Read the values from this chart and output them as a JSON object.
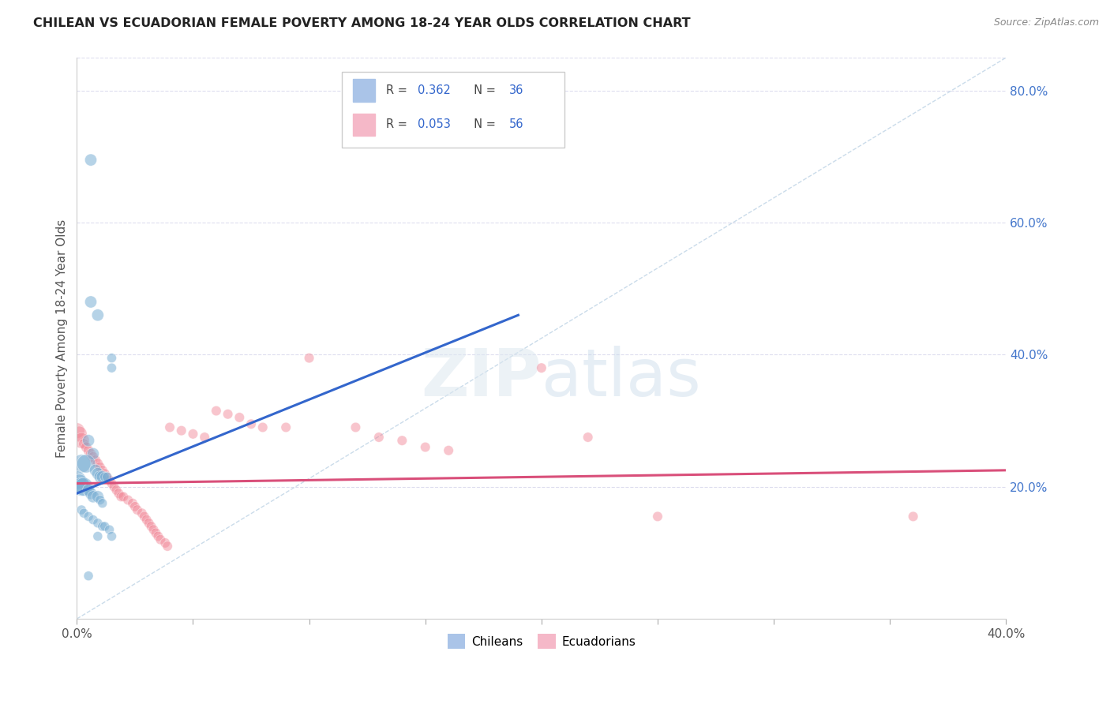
{
  "title": "CHILEAN VS ECUADORIAN FEMALE POVERTY AMONG 18-24 YEAR OLDS CORRELATION CHART",
  "source": "Source: ZipAtlas.com",
  "ylabel": "Female Poverty Among 18-24 Year Olds",
  "xlim": [
    0.0,
    0.4
  ],
  "ylim": [
    0.0,
    0.85
  ],
  "ytick_positions": [
    0.2,
    0.4,
    0.6,
    0.8
  ],
  "ytick_labels": [
    "20.0%",
    "40.0%",
    "60.0%",
    "80.0%"
  ],
  "xtick_positions": [
    0.0,
    0.05,
    0.1,
    0.15,
    0.2,
    0.25,
    0.3,
    0.35,
    0.4
  ],
  "xtick_labels": [
    "0.0%",
    "",
    "",
    "",
    "",
    "",
    "",
    "",
    "40.0%"
  ],
  "watermark": "ZIPatlas",
  "chilean_color": "#7bafd4",
  "ecuadorian_color": "#f08090",
  "trendline_chilean_color": "#3366cc",
  "trendline_ecuadorian_color": "#d94f7a",
  "diagonal_color": "#c5d8e8",
  "chilean_points": [
    [
      0.006,
      0.695
    ],
    [
      0.006,
      0.48
    ],
    [
      0.015,
      0.395
    ],
    [
      0.015,
      0.38
    ],
    [
      0.009,
      0.46
    ],
    [
      0.005,
      0.27
    ],
    [
      0.007,
      0.25
    ],
    [
      0.002,
      0.235
    ],
    [
      0.004,
      0.235
    ],
    [
      0.008,
      0.225
    ],
    [
      0.009,
      0.22
    ],
    [
      0.01,
      0.215
    ],
    [
      0.011,
      0.215
    ],
    [
      0.012,
      0.215
    ],
    [
      0.013,
      0.215
    ],
    [
      0.0,
      0.21
    ],
    [
      0.001,
      0.205
    ],
    [
      0.002,
      0.2
    ],
    [
      0.003,
      0.2
    ],
    [
      0.005,
      0.195
    ],
    [
      0.006,
      0.19
    ],
    [
      0.007,
      0.185
    ],
    [
      0.009,
      0.185
    ],
    [
      0.01,
      0.18
    ],
    [
      0.011,
      0.175
    ],
    [
      0.002,
      0.165
    ],
    [
      0.003,
      0.16
    ],
    [
      0.005,
      0.155
    ],
    [
      0.007,
      0.15
    ],
    [
      0.009,
      0.145
    ],
    [
      0.011,
      0.14
    ],
    [
      0.012,
      0.14
    ],
    [
      0.014,
      0.135
    ],
    [
      0.009,
      0.125
    ],
    [
      0.015,
      0.125
    ],
    [
      0.005,
      0.065
    ]
  ],
  "ecuadorian_points": [
    [
      0.0,
      0.285
    ],
    [
      0.001,
      0.28
    ],
    [
      0.002,
      0.27
    ],
    [
      0.003,
      0.265
    ],
    [
      0.004,
      0.26
    ],
    [
      0.005,
      0.255
    ],
    [
      0.006,
      0.25
    ],
    [
      0.007,
      0.245
    ],
    [
      0.008,
      0.24
    ],
    [
      0.009,
      0.235
    ],
    [
      0.01,
      0.23
    ],
    [
      0.011,
      0.225
    ],
    [
      0.012,
      0.22
    ],
    [
      0.013,
      0.215
    ],
    [
      0.014,
      0.21
    ],
    [
      0.015,
      0.205
    ],
    [
      0.016,
      0.2
    ],
    [
      0.017,
      0.195
    ],
    [
      0.018,
      0.19
    ],
    [
      0.019,
      0.185
    ],
    [
      0.02,
      0.185
    ],
    [
      0.022,
      0.18
    ],
    [
      0.024,
      0.175
    ],
    [
      0.025,
      0.17
    ],
    [
      0.026,
      0.165
    ],
    [
      0.028,
      0.16
    ],
    [
      0.029,
      0.155
    ],
    [
      0.03,
      0.15
    ],
    [
      0.031,
      0.145
    ],
    [
      0.032,
      0.14
    ],
    [
      0.033,
      0.135
    ],
    [
      0.034,
      0.13
    ],
    [
      0.035,
      0.125
    ],
    [
      0.036,
      0.12
    ],
    [
      0.038,
      0.115
    ],
    [
      0.039,
      0.11
    ],
    [
      0.04,
      0.29
    ],
    [
      0.045,
      0.285
    ],
    [
      0.05,
      0.28
    ],
    [
      0.055,
      0.275
    ],
    [
      0.06,
      0.315
    ],
    [
      0.065,
      0.31
    ],
    [
      0.07,
      0.305
    ],
    [
      0.075,
      0.295
    ],
    [
      0.08,
      0.29
    ],
    [
      0.09,
      0.29
    ],
    [
      0.1,
      0.395
    ],
    [
      0.12,
      0.29
    ],
    [
      0.13,
      0.275
    ],
    [
      0.14,
      0.27
    ],
    [
      0.15,
      0.26
    ],
    [
      0.16,
      0.255
    ],
    [
      0.2,
      0.38
    ],
    [
      0.22,
      0.275
    ],
    [
      0.25,
      0.155
    ],
    [
      0.36,
      0.155
    ]
  ],
  "chilean_trendline": [
    [
      0.0,
      0.19
    ],
    [
      0.19,
      0.46
    ]
  ],
  "ecuadorian_trendline": [
    [
      0.0,
      0.205
    ],
    [
      0.4,
      0.225
    ]
  ],
  "diagonal_line": [
    [
      0.0,
      0.0
    ],
    [
      0.4,
      0.85
    ]
  ]
}
